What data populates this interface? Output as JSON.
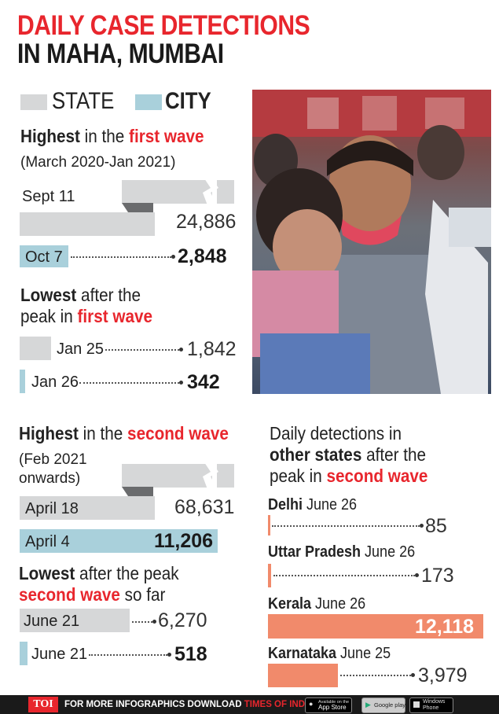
{
  "title": {
    "line1": "DAILY CASE DETECTIONS",
    "line2": "IN MAHA, MUMBAI"
  },
  "legend": {
    "state": "STATE",
    "city": "CITY"
  },
  "colors": {
    "state": "#d6d7d8",
    "city": "#a9d0db",
    "other_states": "#f18a6b",
    "accent": "#e8262d"
  },
  "first_wave": {
    "highest_heading": {
      "pre": "Highest",
      "mid": " in the ",
      "hl": "first wave"
    },
    "period": "(March 2020-Jan 2021)",
    "state_peak": {
      "label": "Sept 11",
      "value": "24,886"
    },
    "city_peak": {
      "label": "Oct 7",
      "value": "2,848"
    },
    "lowest_heading": {
      "pre": "Lowest",
      "mid": " after the",
      "line2": "peak in ",
      "hl": "first wave"
    },
    "state_low": {
      "label": "Jan 25",
      "value": "1,842"
    },
    "city_low": {
      "label": "Jan 26",
      "value": "342"
    }
  },
  "second_wave": {
    "highest_heading": {
      "pre": "Highest",
      "mid": " in the ",
      "hl": "second wave"
    },
    "period_line1": "(Feb 2021",
    "period_line2": "onwards)",
    "state_peak": {
      "label": "April 18",
      "value": "68,631"
    },
    "city_peak": {
      "label": "April 4",
      "value": "11,206"
    },
    "lowest_heading": {
      "pre": "Lowest",
      "mid": " after the peak",
      "hl": "second wave",
      "post": " so far"
    },
    "state_low": {
      "label": "June 21",
      "value": "6,270"
    },
    "city_low": {
      "label": "June 21",
      "value": "518"
    }
  },
  "other_states": {
    "heading_line1": "Daily detections in",
    "heading_line2_bold": "other states",
    "heading_line2_rest": " after the",
    "heading_line3": "peak in ",
    "heading_hl": "second wave",
    "items": [
      {
        "state": "Delhi",
        "date": " June 26",
        "value": "85"
      },
      {
        "state": "Uttar Pradesh",
        "date": " June 26",
        "value": "173"
      },
      {
        "state": "Kerala",
        "date": " June 26",
        "value": "12,118"
      },
      {
        "state": "Karnataka",
        "date": " June 25",
        "value": "3,979"
      }
    ]
  },
  "chart_data": [
    {
      "type": "bar",
      "title": "Highest in the first wave",
      "categories": [
        "Sept 11",
        "Oct 7"
      ],
      "series": [
        {
          "name": "STATE",
          "values": [
            24886,
            null
          ]
        },
        {
          "name": "CITY",
          "values": [
            null,
            2848
          ]
        }
      ]
    },
    {
      "type": "bar",
      "title": "Lowest after the peak in first wave",
      "categories": [
        "Jan 25",
        "Jan 26"
      ],
      "series": [
        {
          "name": "STATE",
          "values": [
            1842,
            null
          ]
        },
        {
          "name": "CITY",
          "values": [
            null,
            342
          ]
        }
      ]
    },
    {
      "type": "bar",
      "title": "Highest in the second wave",
      "categories": [
        "April 18",
        "April 4"
      ],
      "series": [
        {
          "name": "STATE",
          "values": [
            68631,
            null
          ]
        },
        {
          "name": "CITY",
          "values": [
            null,
            11206
          ]
        }
      ]
    },
    {
      "type": "bar",
      "title": "Lowest after the peak second wave so far",
      "categories": [
        "June 21",
        "June 21"
      ],
      "series": [
        {
          "name": "STATE",
          "values": [
            6270,
            null
          ]
        },
        {
          "name": "CITY",
          "values": [
            null,
            518
          ]
        }
      ]
    },
    {
      "type": "bar",
      "title": "Daily detections in other states after the peak in second wave",
      "categories": [
        "Delhi June 26",
        "Uttar Pradesh June 26",
        "Kerala June 26",
        "Karnataka June 25"
      ],
      "values": [
        85,
        173,
        12118,
        3979
      ]
    }
  ],
  "footer": {
    "toi": "TOI",
    "text_pre": "FOR MORE  INFOGRAPHICS DOWNLOAD ",
    "text_hl": "TIMES OF INDIA APP",
    "app_store_small": "Available on the",
    "app_store": "App Store",
    "google_play": "Google play",
    "windows_small": "Windows",
    "windows": "Phone"
  }
}
